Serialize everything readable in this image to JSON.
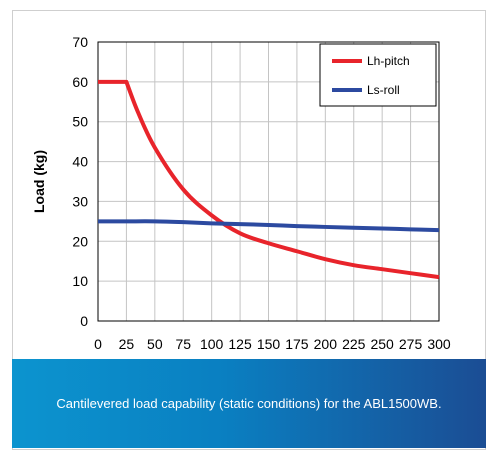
{
  "chart_data": {
    "type": "line",
    "ylabel": "Load (kg)",
    "xlabel": "",
    "xlim": [
      0,
      300
    ],
    "ylim": [
      0,
      70
    ],
    "x_ticks": [
      "0",
      "25",
      "50",
      "75",
      "100",
      "125",
      "150",
      "175",
      "200",
      "225",
      "250",
      "275",
      "300"
    ],
    "y_ticks": [
      "0",
      "10",
      "20",
      "30",
      "40",
      "50",
      "60",
      "70"
    ],
    "grid": true,
    "legend_position": "top-right",
    "series": [
      {
        "name": "Lh-pitch",
        "color": "#e8242b",
        "x": [
          0,
          25,
          35,
          50,
          75,
          100,
          125,
          150,
          175,
          200,
          225,
          250,
          275,
          300
        ],
        "y": [
          60,
          60,
          52.5,
          43.5,
          33,
          26.5,
          22,
          19.5,
          17.5,
          15.5,
          14,
          13,
          12,
          11
        ]
      },
      {
        "name": "Ls-roll",
        "color": "#2c4aa0",
        "x": [
          0,
          25,
          50,
          75,
          100,
          125,
          150,
          175,
          200,
          225,
          250,
          275,
          300
        ],
        "y": [
          25,
          25,
          25,
          24.8,
          24.5,
          24.3,
          24.1,
          23.8,
          23.6,
          23.4,
          23.2,
          23.0,
          22.8
        ]
      }
    ]
  },
  "caption": "Cantilevered load capability (static conditions) for the ABL1500WB."
}
